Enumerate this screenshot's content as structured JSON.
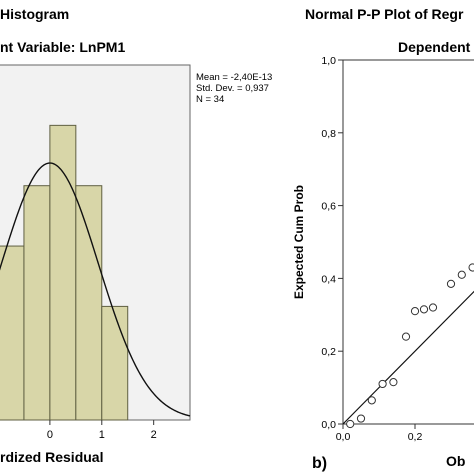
{
  "chart_data": [
    {
      "type": "bar",
      "title": "Histogram",
      "subtitle": "nt Variable: LnPM1",
      "xlabel": "rdized Residual",
      "x_ticks": [
        "0",
        "1",
        "2"
      ],
      "bins": [
        {
          "from": -1.0,
          "to": -0.5,
          "count": 4.9
        },
        {
          "from": -0.5,
          "to": 0.0,
          "count": 6.6
        },
        {
          "from": 0.0,
          "to": 0.5,
          "count": 8.3
        },
        {
          "from": 0.5,
          "to": 1.0,
          "count": 6.6
        },
        {
          "from": 1.0,
          "to": 1.5,
          "count": 3.2
        }
      ],
      "xlim": [
        -1.0,
        2.7
      ],
      "ylim": [
        0,
        10
      ],
      "normal_curve": {
        "mean": -2.4e-13,
        "sd": 0.937,
        "n": 34,
        "bin_width": 0.5
      },
      "stats": [
        "Mean = -2,40E-13",
        "Std. Dev. = 0,937",
        "N = 34"
      ],
      "colors": {
        "bar_fill": "#d8d6a8",
        "bar_stroke": "#5f5f42",
        "plot_bg": "#f2f2f2"
      }
    },
    {
      "type": "scatter",
      "panel_label": "b)",
      "title": "Normal P-P Plot of Regr",
      "subtitle": "Dependent",
      "ylabel": "Expected Cum Prob",
      "xlabel": "Ob",
      "y_ticks": [
        "0,0",
        "0,2",
        "0,4",
        "0,6",
        "0,8",
        "1,0"
      ],
      "x_ticks": [
        "0,0",
        "0,2"
      ],
      "xlim": [
        0,
        1
      ],
      "ylim": [
        0,
        1
      ],
      "points": [
        {
          "x": 0.02,
          "y": 0.0
        },
        {
          "x": 0.05,
          "y": 0.015
        },
        {
          "x": 0.08,
          "y": 0.065
        },
        {
          "x": 0.11,
          "y": 0.11
        },
        {
          "x": 0.14,
          "y": 0.115
        },
        {
          "x": 0.175,
          "y": 0.24
        },
        {
          "x": 0.2,
          "y": 0.31
        },
        {
          "x": 0.225,
          "y": 0.315
        },
        {
          "x": 0.25,
          "y": 0.32
        },
        {
          "x": 0.3,
          "y": 0.385
        },
        {
          "x": 0.33,
          "y": 0.41
        },
        {
          "x": 0.36,
          "y": 0.43
        },
        {
          "x": 0.38,
          "y": 0.45
        }
      ],
      "reference_line": [
        [
          0,
          0
        ],
        [
          1,
          1
        ]
      ],
      "colors": {
        "point_stroke": "#333333",
        "line": "#111111"
      }
    }
  ]
}
